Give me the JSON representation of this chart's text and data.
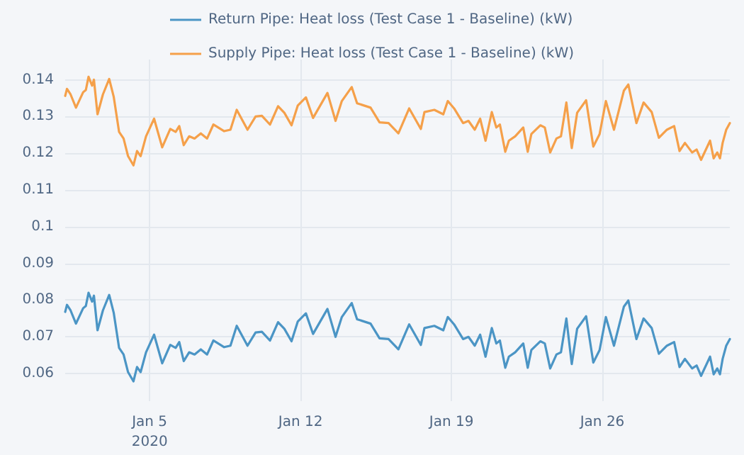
{
  "chart_data": {
    "type": "line",
    "x": [
      "2020-01-01T02:00",
      "2020-01-01T04:00",
      "2020-01-01T08:00",
      "2020-01-01T14:00",
      "2020-01-01T22:00",
      "2020-01-02T01:00",
      "2020-01-02T04:00",
      "2020-01-02T08:00",
      "2020-01-02T10:00",
      "2020-01-02T14:00",
      "2020-01-02T20:00",
      "2020-01-03T03:00",
      "2020-01-03T08:00",
      "2020-01-03T14:00",
      "2020-01-03T19:00",
      "2020-01-04T00:00",
      "2020-01-04T06:00",
      "2020-01-04T10:00",
      "2020-01-04T14:00",
      "2020-01-04T20:00",
      "2020-01-05T05:00",
      "2020-01-05T14:00",
      "2020-01-05T23:00",
      "2020-01-06T05:00",
      "2020-01-06T09:00",
      "2020-01-06T14:00",
      "2020-01-06T20:00",
      "2020-01-07T02:00",
      "2020-01-07T09:00",
      "2020-01-07T16:00",
      "2020-01-07T23:00",
      "2020-01-08T11:00",
      "2020-01-08T18:00",
      "2020-01-09T01:00",
      "2020-01-09T13:00",
      "2020-01-09T22:00",
      "2020-01-10T05:00",
      "2020-01-10T14:00",
      "2020-01-10T23:00",
      "2020-01-11T06:00",
      "2020-01-11T14:00",
      "2020-01-11T21:00",
      "2020-01-12T06:00",
      "2020-01-12T14:00",
      "2020-01-13T06:00",
      "2020-01-13T15:00",
      "2020-01-13T22:00",
      "2020-01-14T09:00",
      "2020-01-14T15:00",
      "2020-01-15T06:00",
      "2020-01-15T16:00",
      "2020-01-16T02:00",
      "2020-01-16T13:00",
      "2020-01-17T01:00",
      "2020-01-17T14:00",
      "2020-01-17T18:00",
      "2020-01-18T05:00",
      "2020-01-18T15:00",
      "2020-01-18T20:00",
      "2020-01-19T03:00",
      "2020-01-19T13:00",
      "2020-01-19T19:00",
      "2020-01-20T02:00",
      "2020-01-20T08:00",
      "2020-01-20T14:00",
      "2020-01-20T21:00",
      "2020-01-21T02:00",
      "2020-01-21T06:00",
      "2020-01-21T12:00",
      "2020-01-21T16:00",
      "2020-01-21T23:00",
      "2020-01-22T08:00",
      "2020-01-22T13:00",
      "2020-01-22T17:00",
      "2020-01-23T03:00",
      "2020-01-23T08:00",
      "2020-01-23T14:00",
      "2020-01-23T21:00",
      "2020-01-24T02:00",
      "2020-01-24T08:00",
      "2020-01-24T14:00",
      "2020-01-24T20:00",
      "2020-01-25T06:00",
      "2020-01-25T14:00",
      "2020-01-25T21:00",
      "2020-01-26T04:00",
      "2020-01-26T13:00",
      "2020-01-27T00:00",
      "2020-01-27T05:00",
      "2020-01-27T14:00",
      "2020-01-27T22:00",
      "2020-01-28T07:00",
      "2020-01-28T15:00",
      "2020-01-29T00:00",
      "2020-01-29T08:00",
      "2020-01-29T14:00",
      "2020-01-29T20:00",
      "2020-01-30T04:00",
      "2020-01-30T09:00",
      "2020-01-30T14:00",
      "2020-01-31T00:00",
      "2020-01-31T04:00",
      "2020-01-31T08:00",
      "2020-01-31T11:00",
      "2020-01-31T14:00",
      "2020-01-31T18:00",
      "2020-01-31T22:00"
    ],
    "series": [
      {
        "name": "Return Pipe: Heat loss (Test Case 1 - Baseline) (kW)",
        "color": "#4b95c5",
        "values": [
          0.0768,
          0.0787,
          0.0772,
          0.0736,
          0.0778,
          0.0784,
          0.082,
          0.0796,
          0.0812,
          0.0718,
          0.0772,
          0.0814,
          0.0766,
          0.067,
          0.0652,
          0.0604,
          0.0579,
          0.0618,
          0.0604,
          0.0658,
          0.0706,
          0.0628,
          0.0678,
          0.067,
          0.0686,
          0.0634,
          0.0658,
          0.0652,
          0.0666,
          0.0652,
          0.069,
          0.0672,
          0.0676,
          0.073,
          0.0676,
          0.0712,
          0.0714,
          0.069,
          0.074,
          0.0722,
          0.0688,
          0.0742,
          0.0764,
          0.0708,
          0.0776,
          0.07,
          0.0754,
          0.0792,
          0.0748,
          0.0736,
          0.0696,
          0.0694,
          0.0666,
          0.0734,
          0.0678,
          0.0724,
          0.073,
          0.0718,
          0.0754,
          0.0734,
          0.0694,
          0.07,
          0.0676,
          0.0706,
          0.0646,
          0.0724,
          0.0682,
          0.069,
          0.0616,
          0.0646,
          0.0658,
          0.0682,
          0.0616,
          0.0664,
          0.0688,
          0.0682,
          0.0614,
          0.0652,
          0.0658,
          0.075,
          0.0626,
          0.0722,
          0.0756,
          0.063,
          0.0664,
          0.0754,
          0.0676,
          0.0782,
          0.0799,
          0.0694,
          0.075,
          0.0724,
          0.0654,
          0.0676,
          0.0686,
          0.0618,
          0.064,
          0.0614,
          0.0622,
          0.0594,
          0.0646,
          0.0598,
          0.0614,
          0.0598,
          0.064,
          0.0676,
          0.0694
        ]
      },
      {
        "name": "Supply Pipe: Heat loss (Test Case 1 - Baseline) (kW)",
        "color": "#f5a04a",
        "values": [
          0.1356,
          0.1375,
          0.136,
          0.1324,
          0.1366,
          0.1372,
          0.1408,
          0.1384,
          0.14,
          0.1306,
          0.136,
          0.1402,
          0.1354,
          0.1258,
          0.124,
          0.1192,
          0.1167,
          0.1206,
          0.1192,
          0.1246,
          0.1294,
          0.1216,
          0.1266,
          0.1258,
          0.1274,
          0.1222,
          0.1246,
          0.124,
          0.1254,
          0.124,
          0.1278,
          0.126,
          0.1264,
          0.1318,
          0.1264,
          0.13,
          0.1302,
          0.1278,
          0.1328,
          0.131,
          0.1276,
          0.133,
          0.1352,
          0.1296,
          0.1364,
          0.1288,
          0.1342,
          0.138,
          0.1336,
          0.1324,
          0.1284,
          0.1282,
          0.1254,
          0.1322,
          0.1266,
          0.1312,
          0.1318,
          0.1306,
          0.1342,
          0.1322,
          0.1282,
          0.1288,
          0.1264,
          0.1294,
          0.1234,
          0.1312,
          0.127,
          0.1278,
          0.1204,
          0.1234,
          0.1246,
          0.127,
          0.1204,
          0.1252,
          0.1276,
          0.127,
          0.1202,
          0.124,
          0.1246,
          0.1338,
          0.1214,
          0.131,
          0.1344,
          0.1218,
          0.1252,
          0.1342,
          0.1264,
          0.137,
          0.1387,
          0.1282,
          0.1338,
          0.1312,
          0.1242,
          0.1264,
          0.1274,
          0.1206,
          0.1228,
          0.1202,
          0.121,
          0.1182,
          0.1234,
          0.1186,
          0.1202,
          0.1186,
          0.1228,
          0.1264,
          0.1282
        ]
      }
    ],
    "xlim": [
      "2020-01-01T02:00",
      "2020-01-31T22:00"
    ],
    "xticks": [
      {
        "value": "2020-01-05",
        "label": "Jan 5\n2020"
      },
      {
        "value": "2020-01-12",
        "label": "Jan 12"
      },
      {
        "value": "2020-01-19",
        "label": "Jan 19"
      },
      {
        "value": "2020-01-26",
        "label": "Jan 26"
      }
    ],
    "ylim": [
      0.0525,
      0.1455
    ],
    "yticks": [
      0.06,
      0.07,
      0.08,
      0.09,
      0.1,
      0.11,
      0.12,
      0.13,
      0.14
    ],
    "grid": true,
    "legend": "top",
    "marker": "none",
    "line_style": "solid"
  }
}
